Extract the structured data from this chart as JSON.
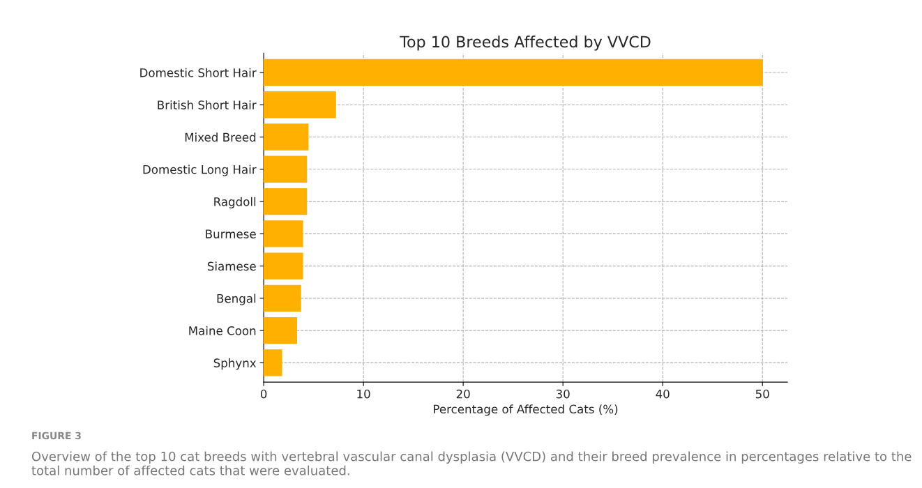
{
  "chart_data": {
    "type": "bar",
    "orientation": "horizontal",
    "title": "Top 10 Breeds Affected by VVCD",
    "xlabel": "Percentage of Affected Cats (%)",
    "categories": [
      "Domestic Short Hair",
      "British Short Hair",
      "Mixed Breed",
      "Domestic Long Hair",
      "Ragdoll",
      "Burmese",
      "Siamese",
      "Bengal",
      "Maine Coon",
      "Sphynx"
    ],
    "values": [
      50,
      7.2,
      4.45,
      4.3,
      4.3,
      3.9,
      3.9,
      3.7,
      3.3,
      1.8
    ],
    "color": "#ffb000",
    "xlim": [
      0,
      52.5
    ],
    "xticks": [
      0,
      10,
      20,
      30,
      40,
      50
    ],
    "grid": true,
    "line_style": "dashed",
    "annotations": [
      "FIGURE 3",
      "Overview of the top 10 cat breeds with vertebral vascular canal dysplasia (VVCD) and their breed prevalence in percentages relative to the total number of affected cats that were evaluated."
    ]
  }
}
